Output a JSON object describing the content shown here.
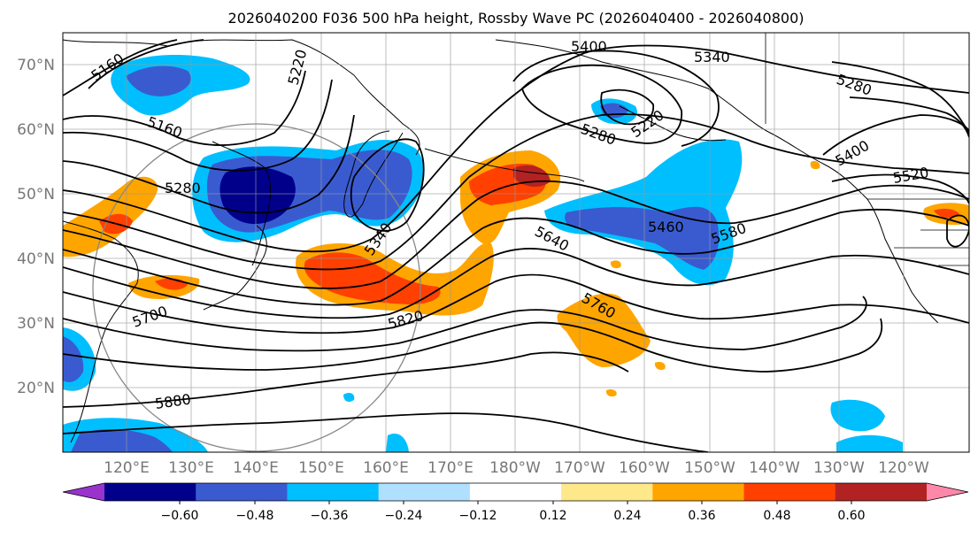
{
  "title": "2026040200 F036 500 hPa height, Rossby Wave PC (2026040400 - 2026040800)",
  "lat_labels": [
    "70°N",
    "60°N",
    "50°N",
    "40°N",
    "30°N",
    "20°N"
  ],
  "lon_labels": [
    "120°E",
    "130°E",
    "140°E",
    "150°E",
    "160°E",
    "170°E",
    "180°W",
    "170°W",
    "160°W",
    "150°W",
    "140°W",
    "130°W",
    "120°W"
  ],
  "contour_labels": [
    "5160",
    "5220",
    "5400",
    "5340",
    "5280",
    "5160",
    "5280",
    "5220",
    "5280",
    "5400",
    "5520",
    "5340",
    "5460",
    "5580",
    "5640",
    "5700",
    "5820",
    "5760",
    "5880"
  ],
  "colorbar": {
    "ticks": [
      "−0.60",
      "−0.48",
      "−0.36",
      "−0.24",
      "−0.12",
      "0.12",
      "0.24",
      "0.36",
      "0.48",
      "0.60"
    ],
    "colors": [
      "#9933cc",
      "#00008b",
      "#3a5bd0",
      "#00bfff",
      "#b0e0ff",
      "#ffffff",
      "#ffe88a",
      "#ffa500",
      "#ff4000",
      "#b22222",
      "#ff88aa"
    ]
  }
}
